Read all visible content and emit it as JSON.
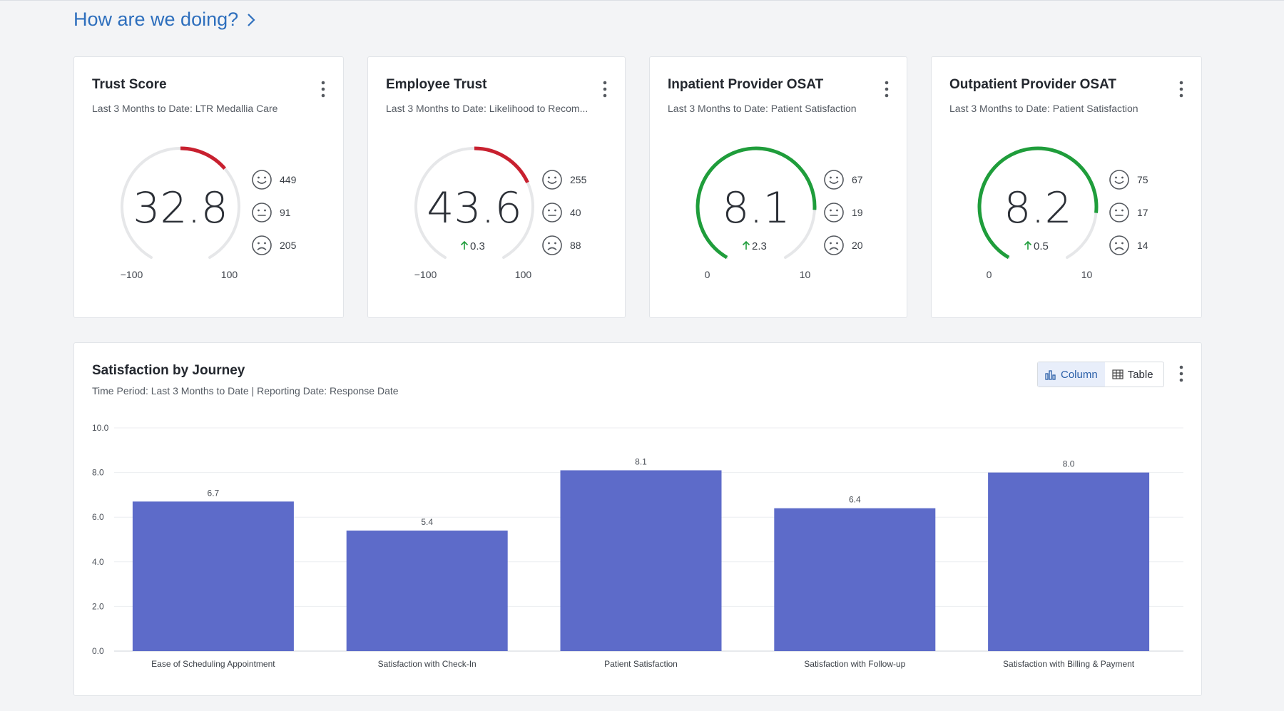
{
  "header": {
    "title": "How are we doing?"
  },
  "cards": [
    {
      "title": "Trust Score",
      "subtitle": "Last 3 Months to Date: LTR Medallia Care",
      "value": "32.8",
      "delta": "",
      "min_label": "−100",
      "max_label": "100",
      "min": -100,
      "max": 100,
      "score": 32.8,
      "arc_color": "#c8202f",
      "counts": {
        "positive": "449",
        "neutral": "91",
        "negative": "205"
      }
    },
    {
      "title": "Employee Trust",
      "subtitle": "Last 3 Months to Date: Likelihood to Recom...",
      "value": "43.6",
      "delta": "0.3",
      "min_label": "−100",
      "max_label": "100",
      "min": -100,
      "max": 100,
      "score": 43.6,
      "arc_color": "#c8202f",
      "counts": {
        "positive": "255",
        "neutral": "40",
        "negative": "88"
      }
    },
    {
      "title": "Inpatient Provider OSAT",
      "subtitle": "Last 3 Months to Date: Patient Satisfaction",
      "value": "8.1",
      "delta": "2.3",
      "min_label": "0",
      "max_label": "10",
      "min": 0,
      "max": 10,
      "score": 8.1,
      "arc_color": "#1f9d3b",
      "counts": {
        "positive": "67",
        "neutral": "19",
        "negative": "20"
      }
    },
    {
      "title": "Outpatient Provider OSAT",
      "subtitle": "Last 3 Months to Date: Patient Satisfaction",
      "value": "8.2",
      "delta": "0.5",
      "min_label": "0",
      "max_label": "10",
      "min": 0,
      "max": 10,
      "score": 8.2,
      "arc_color": "#1f9d3b",
      "counts": {
        "positive": "75",
        "neutral": "17",
        "negative": "14"
      }
    }
  ],
  "journey": {
    "title": "Satisfaction by Journey",
    "subtitle": "Time Period: Last 3 Months to Date | Reporting Date: Response Date",
    "toggle": {
      "column": "Column",
      "table": "Table",
      "active": "column"
    }
  },
  "chart_data": {
    "type": "bar",
    "categories": [
      "Ease of Scheduling Appointment",
      "Satisfaction with Check-In",
      "Patient Satisfaction",
      "Satisfaction with Follow-up",
      "Satisfaction with Billing & Payment"
    ],
    "values": [
      6.7,
      5.4,
      8.1,
      6.4,
      8.0
    ],
    "value_labels": [
      "6.7",
      "5.4",
      "8.1",
      "6.4",
      "8.0"
    ],
    "y_ticks": [
      "0.0",
      "2.0",
      "4.0",
      "6.0",
      "8.0",
      "10.0"
    ],
    "ylim": [
      0,
      10
    ],
    "bar_color": "#5d6bc9",
    "grid": true
  },
  "colors": {
    "accent": "#2e6fbd",
    "positive_delta": "#1f9d3b"
  }
}
